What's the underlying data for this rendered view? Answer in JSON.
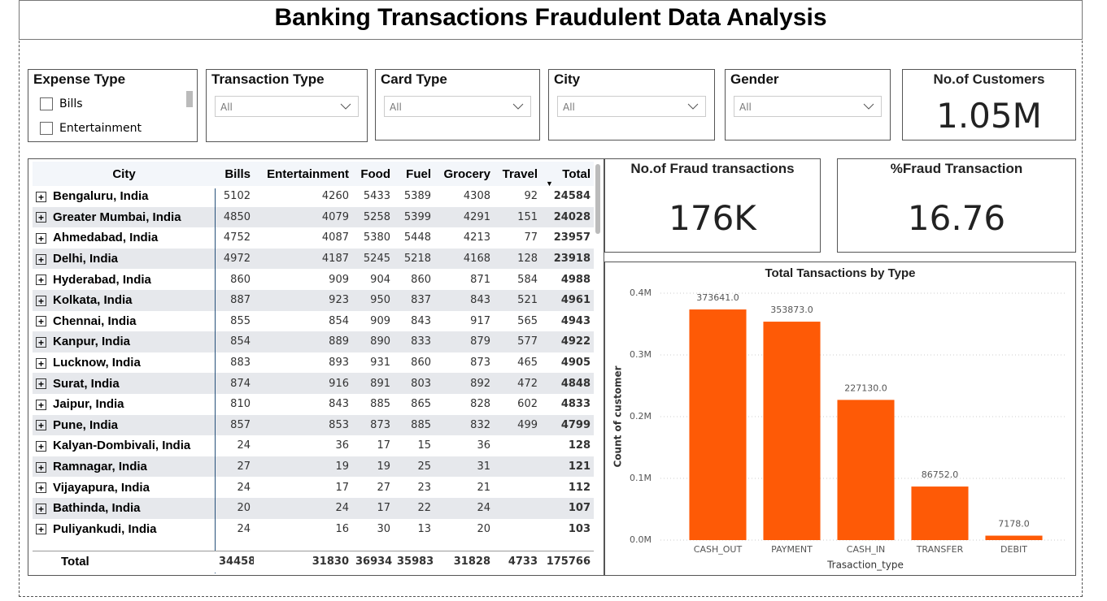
{
  "header": {
    "title": "Banking Transactions Fraudulent Data Analysis"
  },
  "filters": [
    {
      "title": "Expense Type",
      "options": [
        "Bills",
        "Entertainment"
      ]
    },
    {
      "title": "Transaction Type",
      "value": "All"
    },
    {
      "title": "Card Type",
      "value": "All"
    },
    {
      "title": "City",
      "value": "All"
    },
    {
      "title": "Gender",
      "value": "All"
    }
  ],
  "cards": [
    {
      "title": "No.of Customers",
      "value": "1.05M"
    },
    {
      "title": "No.of Fraud transactions",
      "value": "176K"
    },
    {
      "title": "%Fraud Transaction",
      "value": "16.76"
    }
  ],
  "table": {
    "columns": [
      "City",
      "Bills",
      "Entertainment",
      "Food",
      "Fuel",
      "Grocery",
      "Travel",
      "Total"
    ],
    "rows": [
      [
        "Bengaluru, India",
        5102,
        4260,
        5433,
        5389,
        4308,
        92,
        24584
      ],
      [
        "Greater Mumbai, India",
        4850,
        4079,
        5258,
        5399,
        4291,
        151,
        24028
      ],
      [
        "Ahmedabad, India",
        4752,
        4087,
        5380,
        5448,
        4213,
        77,
        23957
      ],
      [
        "Delhi, India",
        4972,
        4187,
        5245,
        5218,
        4168,
        128,
        23918
      ],
      [
        "Hyderabad, India",
        860,
        909,
        904,
        860,
        871,
        584,
        4988
      ],
      [
        "Kolkata, India",
        887,
        923,
        950,
        837,
        843,
        521,
        4961
      ],
      [
        "Chennai, India",
        855,
        854,
        909,
        843,
        917,
        565,
        4943
      ],
      [
        "Kanpur, India",
        854,
        889,
        890,
        833,
        879,
        577,
        4922
      ],
      [
        "Lucknow, India",
        883,
        893,
        931,
        860,
        873,
        465,
        4905
      ],
      [
        "Surat, India",
        874,
        916,
        891,
        803,
        892,
        472,
        4848
      ],
      [
        "Jaipur, India",
        810,
        843,
        885,
        865,
        828,
        602,
        4833
      ],
      [
        "Pune, India",
        857,
        853,
        873,
        885,
        832,
        499,
        4799
      ],
      [
        "Kalyan-Dombivali, India",
        24,
        36,
        17,
        15,
        36,
        null,
        128
      ],
      [
        "Ramnagar, India",
        27,
        19,
        19,
        25,
        31,
        null,
        121
      ],
      [
        "Vijayapura, India",
        24,
        17,
        27,
        23,
        21,
        null,
        112
      ],
      [
        "Bathinda, India",
        20,
        24,
        17,
        22,
        24,
        null,
        107
      ],
      [
        "Puliyankudi, India",
        24,
        16,
        30,
        13,
        20,
        null,
        103
      ]
    ],
    "total": [
      "Total",
      34458,
      31830,
      36934,
      35983,
      31828,
      4733,
      175766
    ]
  },
  "chart_data": {
    "type": "bar",
    "title": "Total Tansactions by Type",
    "x_label": "Trasaction_type",
    "y_label": "Count of customer",
    "categories": [
      "CASH_OUT",
      "PAYMENT",
      "CASH_IN",
      "TRANSFER",
      "DEBIT"
    ],
    "values": [
      373641,
      353873,
      227130,
      86752,
      7178
    ],
    "value_labels": [
      "373641.0",
      "353873.0",
      "227130.0",
      "86752.0",
      "7178.0"
    ],
    "color": "#fe5a06",
    "ylim": [
      0,
      400000
    ],
    "yticks": [
      {
        "value": 0,
        "label": "0.0M"
      },
      {
        "value": 100000,
        "label": "0.1M"
      },
      {
        "value": 200000,
        "label": "0.2M"
      },
      {
        "value": 300000,
        "label": "0.3M"
      },
      {
        "value": 400000,
        "label": "0.4M"
      }
    ],
    "grid": true
  }
}
